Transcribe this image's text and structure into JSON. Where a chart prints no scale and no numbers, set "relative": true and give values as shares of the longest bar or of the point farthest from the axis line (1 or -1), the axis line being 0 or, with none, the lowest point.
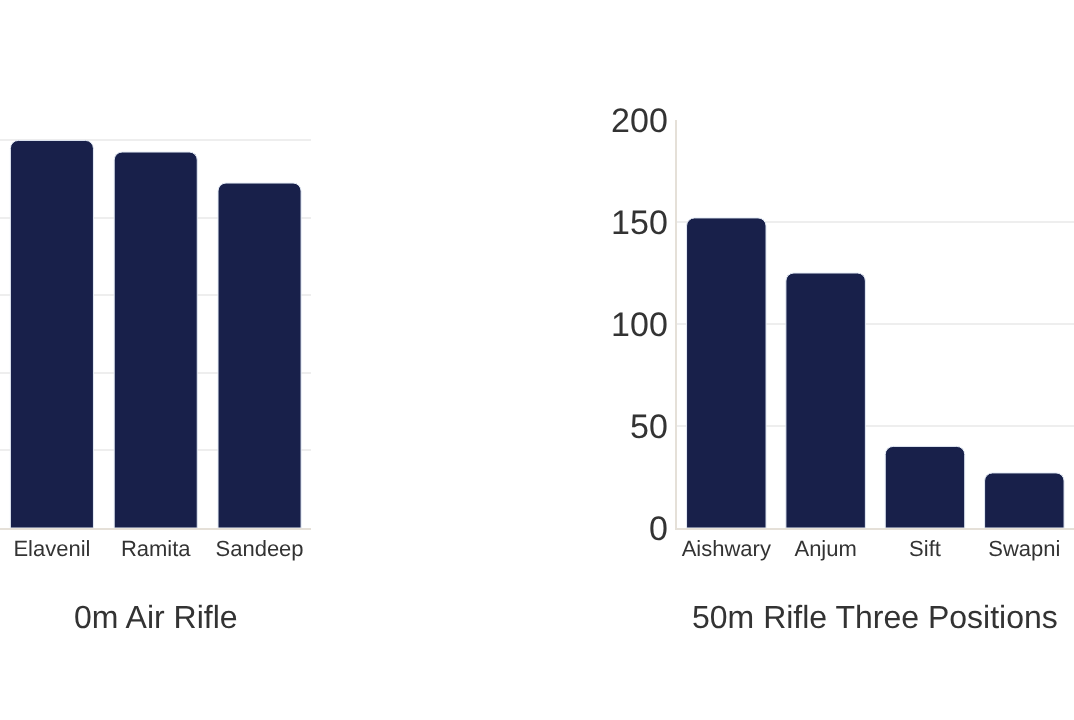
{
  "chart_data": [
    {
      "type": "bar",
      "title": "0m Air Rifle",
      "categories": [
        "Elavenil",
        "Ramita",
        "Sandeep"
      ],
      "values": [
        1,
        0.97,
        0.89
      ],
      "color": "#18204a",
      "relative": true,
      "grid": "y"
    },
    {
      "type": "bar",
      "title": "50m Rifle Three Positions",
      "categories": [
        "Aishwary",
        "Anjum",
        "Sift",
        "Swapni"
      ],
      "values": [
        152,
        125,
        40,
        27
      ],
      "color": "#18204a",
      "ylim": [
        0,
        200
      ],
      "yticks": [
        0,
        50,
        100,
        150,
        200
      ],
      "grid": "y"
    }
  ]
}
